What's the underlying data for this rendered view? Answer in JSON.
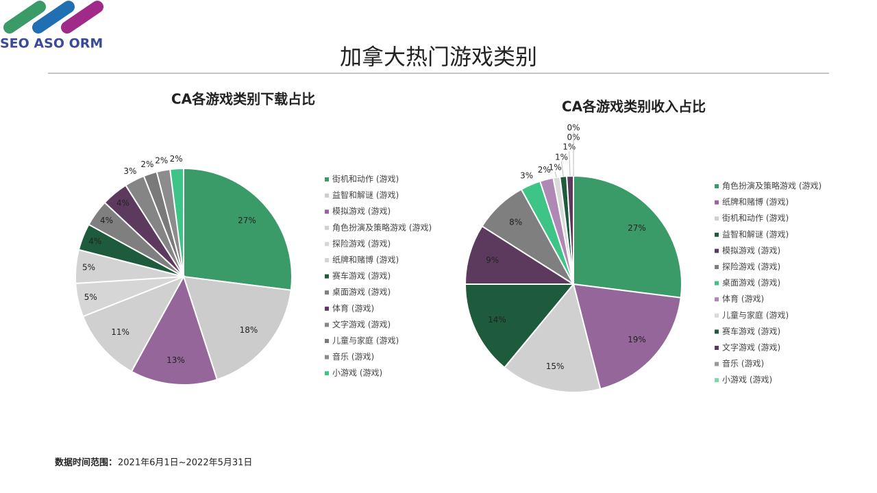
{
  "logo": {
    "text": "SEO ASO ORM"
  },
  "title": "加拿大热门游戏类别",
  "chart_data": [
    {
      "type": "pie",
      "title": "CA各游戏类别下载占比",
      "categories": [
        "街机和动作 (游戏)",
        "益智和解谜 (游戏)",
        "模拟游戏 (游戏)",
        "角色扮演及策略游戏 (游戏)",
        "探险游戏 (游戏)",
        "纸牌和赌博 (游戏)",
        "赛车游戏 (游戏)",
        "桌面游戏 (游戏)",
        "体育 (游戏)",
        "文字游戏 (游戏)",
        "儿童与家庭 (游戏)",
        "音乐 (游戏)",
        "小游戏 (游戏)"
      ],
      "values": [
        27,
        18,
        13,
        11,
        5,
        5,
        4,
        4,
        4,
        3,
        2,
        2,
        2
      ],
      "value_labels": [
        "27%",
        "18%",
        "13%",
        "11%",
        "5%",
        "5%",
        "4%",
        "4%",
        "4%",
        "3%",
        "2%",
        "2%",
        "2%"
      ],
      "colors": [
        "#3a9a68",
        "#cccccc",
        "#946699",
        "#d0d0d0",
        "#d6d6d6",
        "#d3d3d3",
        "#1e5a3c",
        "#7f7f7f",
        "#5c3a5e",
        "#858585",
        "#7a7a7a",
        "#8c8c8c",
        "#3ec487"
      ]
    },
    {
      "type": "pie",
      "title": "CA各游戏类别收入占比",
      "categories": [
        "角色扮演及策略游戏 (游戏)",
        "纸牌和赌博 (游戏)",
        "街机和动作 (游戏)",
        "益智和解谜 (游戏)",
        "模拟游戏 (游戏)",
        "探险游戏 (游戏)",
        "桌面游戏 (游戏)",
        "体育 (游戏)",
        "儿童与家庭 (游戏)",
        "赛车游戏 (游戏)",
        "文字游戏 (游戏)",
        "音乐 (游戏)",
        "小游戏 (游戏)"
      ],
      "values": [
        27,
        19,
        15,
        14,
        9,
        8,
        3,
        2,
        1,
        1,
        1,
        0,
        0
      ],
      "value_labels": [
        "27%",
        "19%",
        "15%",
        "14%",
        "9%",
        "8%",
        "3%",
        "2%",
        "1%",
        "1%",
        "1%",
        "0%",
        "0%"
      ],
      "colors": [
        "#3a9a68",
        "#946699",
        "#d0d0d0",
        "#1e5a3c",
        "#5c3a5e",
        "#7f7f7f",
        "#3ec487",
        "#b088b5",
        "#d9d9d9",
        "#1e5a3c",
        "#5c3a5e",
        "#999999",
        "#7fd8a8"
      ]
    }
  ],
  "footer": {
    "label": "数据时间范围：",
    "value": "2021年6月1日~2022年5月31日"
  }
}
